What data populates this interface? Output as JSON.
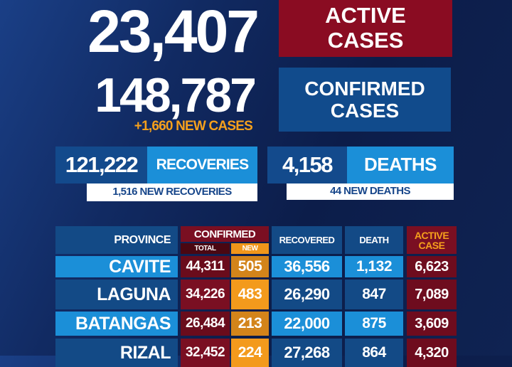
{
  "summary": {
    "active_value": "23,407",
    "active_label_1": "ACTIVE",
    "active_label_2": "CASES",
    "confirmed_value": "148,787",
    "new_cases": "+1,660 NEW CASES",
    "confirmed_label_1": "CONFIRMED",
    "confirmed_label_2": "CASES",
    "recoveries_value": "121,222",
    "recoveries_label": "RECOVERIES",
    "new_recoveries": "1,516 NEW RECOVERIES",
    "deaths_value": "4,158",
    "deaths_label": "DEATHS",
    "new_deaths": "44 NEW DEATHS"
  },
  "colors": {
    "active_red": "#8a0c22",
    "confirmed_blue": "#114b8c",
    "light_blue": "#1b8fd8",
    "orange": "#f5a01c",
    "navy": "#0c1d4a"
  },
  "table": {
    "headers": {
      "province": "PROVINCE",
      "confirmed": "CONFIRMED",
      "total": "TOTAL",
      "new": "NEW",
      "recovered": "RECOVERED",
      "death": "DEATH",
      "active_1": "ACTIVE",
      "active_2": "CASE"
    },
    "rows": [
      {
        "province": "CAVITE",
        "total": "44,311",
        "new": "505",
        "recovered": "36,556",
        "death": "1,132",
        "active": "6,623"
      },
      {
        "province": "LAGUNA",
        "total": "34,226",
        "new": "483",
        "recovered": "26,290",
        "death": "847",
        "active": "7,089"
      },
      {
        "province": "BATANGAS",
        "total": "26,484",
        "new": "213",
        "recovered": "22,000",
        "death": "875",
        "active": "3,609"
      },
      {
        "province": "RIZAL",
        "total": "32,452",
        "new": "224",
        "recovered": "27,268",
        "death": "864",
        "active": "4,320"
      }
    ]
  }
}
